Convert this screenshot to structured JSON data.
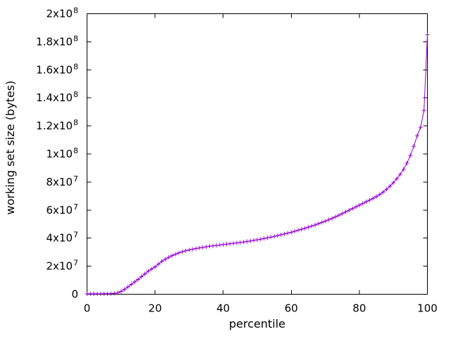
{
  "figure": {
    "background": "#ffffff"
  },
  "chart_data": {
    "type": "line",
    "title": "",
    "xlabel": "percentile",
    "ylabel": "working set size (bytes)",
    "xlim": [
      0,
      100
    ],
    "ylim": [
      0,
      200000000
    ],
    "grid": false,
    "legend": "none",
    "axis_color": "#000000",
    "text_color": "#000000",
    "x_ticks": [
      {
        "value": 0,
        "label": "0"
      },
      {
        "value": 20,
        "label": "20"
      },
      {
        "value": 40,
        "label": "40"
      },
      {
        "value": 60,
        "label": "60"
      },
      {
        "value": 80,
        "label": "80"
      },
      {
        "value": 100,
        "label": "100"
      }
    ],
    "y_ticks": [
      {
        "value": 0,
        "label": "0"
      },
      {
        "value": 20000000,
        "label": "2x10^7"
      },
      {
        "value": 40000000,
        "label": "4x10^7"
      },
      {
        "value": 60000000,
        "label": "6x10^7"
      },
      {
        "value": 80000000,
        "label": "8x10^7"
      },
      {
        "value": 100000000,
        "label": "1x10^8"
      },
      {
        "value": 120000000,
        "label": "1.2x10^8"
      },
      {
        "value": 140000000,
        "label": "1.4x10^8"
      },
      {
        "value": 160000000,
        "label": "1.6x10^8"
      },
      {
        "value": 180000000,
        "label": "1.8x10^8"
      },
      {
        "value": 200000000,
        "label": "2x10^8"
      }
    ],
    "series": [
      {
        "name": "working set size",
        "color": "#9400d3",
        "marker": "plus",
        "line_width": 1,
        "x": [
          0,
          1,
          2,
          3,
          4,
          5,
          6,
          7,
          8,
          9,
          10,
          11,
          12,
          13,
          14,
          15,
          16,
          17,
          18,
          19,
          20,
          21,
          22,
          23,
          24,
          25,
          26,
          27,
          28,
          29,
          30,
          31,
          32,
          33,
          34,
          35,
          36,
          37,
          38,
          39,
          40,
          41,
          42,
          43,
          44,
          45,
          46,
          47,
          48,
          49,
          50,
          51,
          52,
          53,
          54,
          55,
          56,
          57,
          58,
          59,
          60,
          61,
          62,
          63,
          64,
          65,
          66,
          67,
          68,
          69,
          70,
          71,
          72,
          73,
          74,
          75,
          76,
          77,
          78,
          79,
          80,
          81,
          82,
          83,
          84,
          85,
          86,
          87,
          88,
          89,
          90,
          91,
          92,
          93,
          94,
          95,
          96,
          97,
          98,
          99,
          100
        ],
        "y": [
          300000,
          300000,
          310000,
          320000,
          330000,
          350000,
          380000,
          450000,
          600000,
          1000000,
          2000000,
          3500000,
          5200000,
          7000000,
          8800000,
          10500000,
          12500000,
          14500000,
          16500000,
          18000000,
          19500000,
          21500000,
          23500000,
          25000000,
          26300000,
          27500000,
          28500000,
          29500000,
          30300000,
          31000000,
          31600000,
          32100000,
          32600000,
          33000000,
          33400000,
          33800000,
          34200000,
          34500000,
          34800000,
          35100000,
          35400000,
          35700000,
          36000000,
          36300000,
          36600000,
          36900000,
          37200000,
          37600000,
          38000000,
          38400000,
          38800000,
          39200000,
          39700000,
          40200000,
          40700000,
          41200000,
          41800000,
          42400000,
          43000000,
          43600000,
          44200000,
          44900000,
          45600000,
          46300000,
          47000000,
          47800000,
          48600000,
          49400000,
          50300000,
          51200000,
          52100000,
          53100000,
          54100000,
          55200000,
          56300000,
          57500000,
          58700000,
          59900000,
          61100000,
          62300000,
          63500000,
          64700000,
          65900000,
          67100000,
          68300000,
          69600000,
          71100000,
          72800000,
          74800000,
          77000000,
          79500000,
          82300000,
          85400000,
          89000000,
          93500000,
          99000000,
          105500000,
          113000000,
          119000000,
          131000000,
          185000000
        ]
      }
    ]
  }
}
